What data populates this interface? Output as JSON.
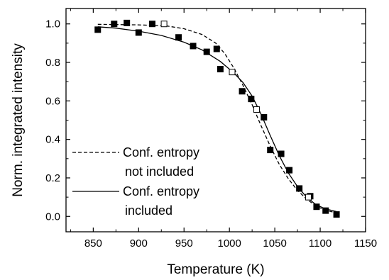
{
  "chart_data": {
    "type": "scatter",
    "title": "",
    "xlabel": "Temperature (K)",
    "ylabel": "Norm. integrated intensity",
    "xlim": [
      820,
      1150
    ],
    "ylim": [
      -0.08,
      1.08
    ],
    "x_ticks": [
      850,
      900,
      950,
      1000,
      1050,
      1100,
      1150
    ],
    "y_ticks": [
      0.0,
      0.2,
      0.4,
      0.6,
      0.8,
      1.0
    ],
    "x_tick_labels": [
      "850",
      "900",
      "950",
      "1000",
      "1050",
      "1100",
      "1150"
    ],
    "y_tick_labels": [
      "0.0",
      "0.2",
      "0.4",
      "0.6",
      "0.8",
      "1.0"
    ],
    "grid": false,
    "legend_position": "left",
    "series": [
      {
        "marker": "filled-square",
        "points": [
          [
            855,
            0.97
          ],
          [
            873,
            1.0
          ],
          [
            887,
            1.005
          ],
          [
            900,
            0.955
          ],
          [
            915,
            1.0
          ],
          [
            944,
            0.93
          ],
          [
            960,
            0.885
          ],
          [
            975,
            0.855
          ],
          [
            986,
            0.87
          ],
          [
            990,
            0.765
          ],
          [
            1014,
            0.65
          ],
          [
            1024,
            0.61
          ],
          [
            1038,
            0.515
          ],
          [
            1045,
            0.345
          ],
          [
            1057,
            0.325
          ],
          [
            1066,
            0.24
          ],
          [
            1077,
            0.145
          ],
          [
            1089,
            0.105
          ],
          [
            1096,
            0.05
          ],
          [
            1106,
            0.03
          ],
          [
            1118,
            0.01
          ]
        ]
      },
      {
        "marker": "open-square",
        "points": [
          [
            928,
            1.0
          ],
          [
            1003,
            0.75
          ],
          [
            1030,
            0.555
          ],
          [
            1087,
            0.1
          ]
        ]
      },
      {
        "name": "Conf. entropy not included",
        "line_style": "dashed",
        "points": [
          [
            855,
            0.998
          ],
          [
            900,
            0.995
          ],
          [
            930,
            0.99
          ],
          [
            950,
            0.975
          ],
          [
            970,
            0.945
          ],
          [
            985,
            0.9
          ],
          [
            995,
            0.845
          ],
          [
            1005,
            0.77
          ],
          [
            1015,
            0.68
          ],
          [
            1025,
            0.58
          ],
          [
            1035,
            0.47
          ],
          [
            1045,
            0.365
          ],
          [
            1055,
            0.27
          ],
          [
            1065,
            0.195
          ],
          [
            1075,
            0.135
          ],
          [
            1085,
            0.09
          ],
          [
            1095,
            0.055
          ],
          [
            1105,
            0.033
          ],
          [
            1118,
            0.018
          ]
        ]
      },
      {
        "name": "Conf. entropy included",
        "line_style": "solid",
        "points": [
          [
            855,
            0.985
          ],
          [
            875,
            0.978
          ],
          [
            900,
            0.962
          ],
          [
            925,
            0.94
          ],
          [
            950,
            0.905
          ],
          [
            970,
            0.865
          ],
          [
            990,
            0.805
          ],
          [
            1005,
            0.745
          ],
          [
            1015,
            0.695
          ],
          [
            1025,
            0.625
          ],
          [
            1035,
            0.53
          ],
          [
            1045,
            0.42
          ],
          [
            1055,
            0.315
          ],
          [
            1065,
            0.225
          ],
          [
            1075,
            0.155
          ],
          [
            1085,
            0.1
          ],
          [
            1095,
            0.062
          ],
          [
            1105,
            0.04
          ],
          [
            1118,
            0.025
          ]
        ]
      }
    ],
    "legend": [
      {
        "line_style": "dashed",
        "lines": [
          "Conf. entropy",
          "not included"
        ]
      },
      {
        "line_style": "solid",
        "lines": [
          "Conf. entropy",
          "included"
        ]
      }
    ]
  }
}
